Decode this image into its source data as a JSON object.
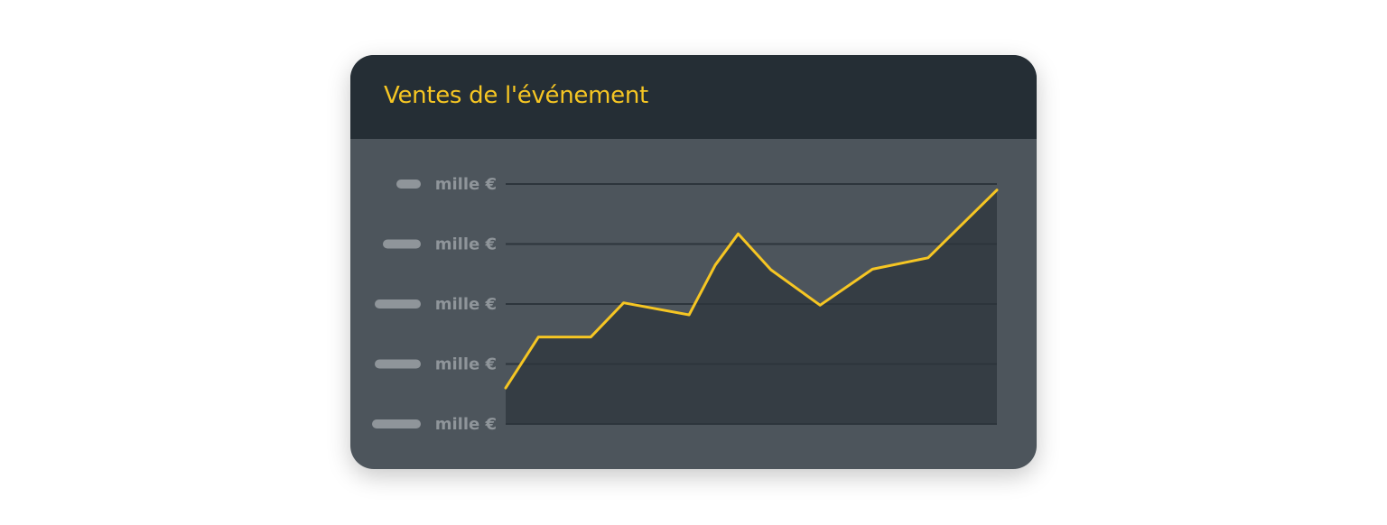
{
  "colors": {
    "accent": "#f6c623",
    "header_bg": "#252e35",
    "card_bg": "#4d555c",
    "area_fill": "#353d44",
    "grid": "#2d353c",
    "label": "#8f959a",
    "placeholder": "#8f959a"
  },
  "header": {
    "title": "Ventes de l'événement"
  },
  "chart_data": {
    "type": "area",
    "title": "Ventes de l'événement",
    "xlabel": "",
    "ylabel": "",
    "grid": true,
    "legend": "none",
    "y_tick_labels": [
      "mille €",
      "mille €",
      "mille €",
      "mille €",
      "mille €"
    ],
    "y_tick_values": [
      0,
      1,
      2,
      3,
      4
    ],
    "ylim": [
      0,
      4
    ],
    "xlim": [
      0,
      15
    ],
    "series": [
      {
        "x": [
          0,
          1,
          2.6,
          3.6,
          5.6,
          6.4,
          7.1,
          8.1,
          9.6,
          11.2,
          12.9,
          15
        ],
        "values": [
          0.6,
          1.45,
          1.45,
          2.02,
          1.82,
          2.65,
          3.17,
          2.57,
          1.98,
          2.58,
          2.77,
          3.9
        ]
      }
    ]
  }
}
